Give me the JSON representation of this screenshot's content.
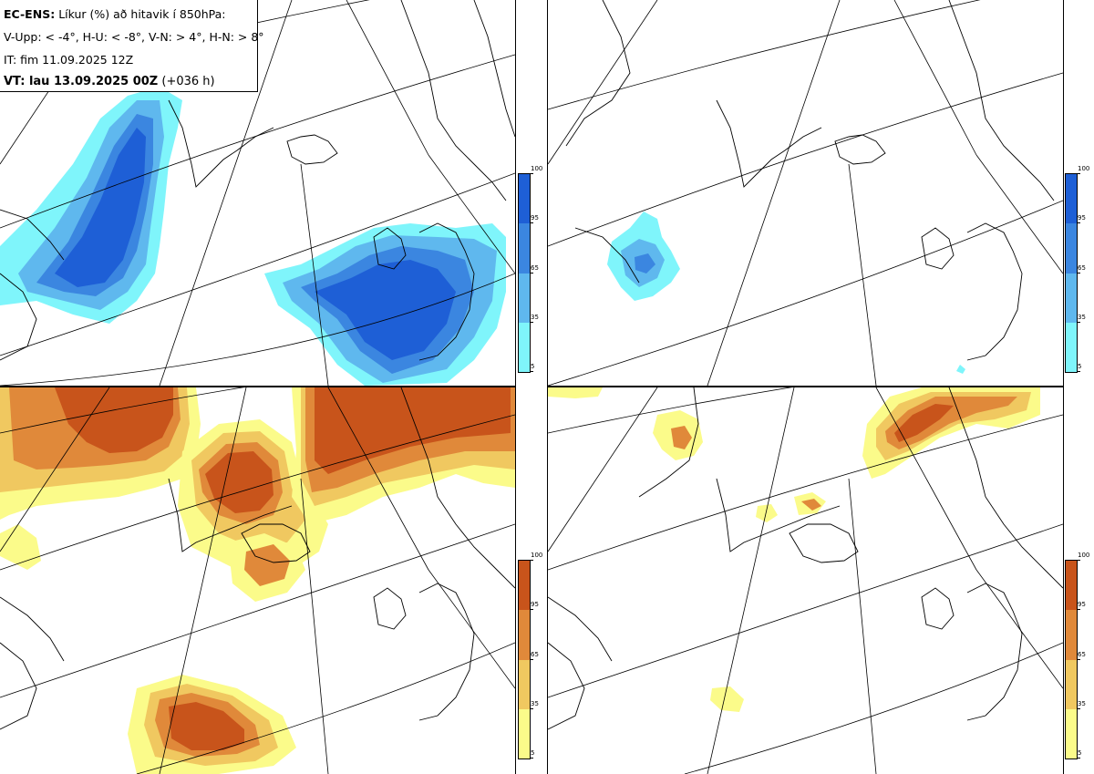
{
  "header": {
    "title_bold": "EC-ENS:",
    "title_rest": "Líkur (%) að hitavik í 850hPa:",
    "legend_line": "V-Upp: < -4°, H-U: < -8°, V-N: > 4°, H-N: > 8°",
    "init_time": "IT: fim 11.09.2025 12Z",
    "valid_bold": "VT: lau 13.09.2025 00Z",
    "valid_rest": "(+036 h)"
  },
  "colorbars": {
    "ticks": [
      "100",
      "95",
      "65",
      "35",
      "5"
    ],
    "cold_colors": [
      "#1e5fd6",
      "#3b86e0",
      "#5fb8ee",
      "#7ff5fb"
    ],
    "warm_colors": [
      "#c8541b",
      "#e0893a",
      "#f0c860",
      "#fbfb8a"
    ]
  },
  "panels": [
    {
      "name": "V-Upp",
      "kind": "cold"
    },
    {
      "name": "H-U",
      "kind": "cold"
    },
    {
      "name": "V-N",
      "kind": "warm"
    },
    {
      "name": "H-N",
      "kind": "warm"
    }
  ]
}
